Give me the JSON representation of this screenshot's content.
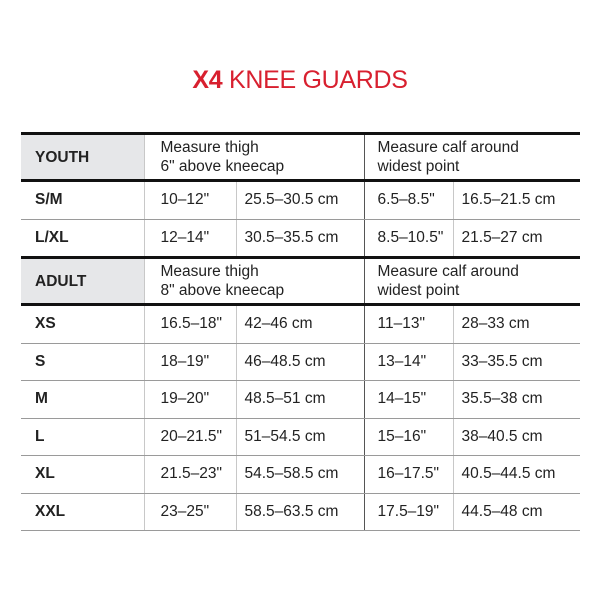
{
  "title": {
    "bold": "X4",
    "rest": " KNEE GUARDS"
  },
  "colors": {
    "accent": "#d8202f",
    "header_bg": "#e6e7e9"
  },
  "sections": [
    {
      "label": "YOUTH",
      "thigh_header": [
        "Measure thigh",
        "6\" above kneecap"
      ],
      "calf_header": [
        "Measure calf around",
        "widest point"
      ],
      "rows": [
        {
          "size": "S/M",
          "thigh_in": "10–12\"",
          "thigh_cm": "25.5–30.5 cm",
          "calf_in": "6.5–8.5\"",
          "calf_cm": "16.5–21.5 cm"
        },
        {
          "size": "L/XL",
          "thigh_in": "12–14\"",
          "thigh_cm": "30.5–35.5 cm",
          "calf_in": "8.5–10.5\"",
          "calf_cm": "21.5–27 cm"
        }
      ]
    },
    {
      "label": "ADULT",
      "thigh_header": [
        "Measure thigh",
        "8\" above kneecap"
      ],
      "calf_header": [
        "Measure calf around",
        "widest point"
      ],
      "rows": [
        {
          "size": "XS",
          "thigh_in": "16.5–18\"",
          "thigh_cm": "42–46 cm",
          "calf_in": "11–13\"",
          "calf_cm": "28–33 cm"
        },
        {
          "size": "S",
          "thigh_in": "18–19\"",
          "thigh_cm": "46–48.5 cm",
          "calf_in": "13–14\"",
          "calf_cm": "33–35.5 cm"
        },
        {
          "size": "M",
          "thigh_in": "19–20\"",
          "thigh_cm": "48.5–51 cm",
          "calf_in": "14–15\"",
          "calf_cm": "35.5–38 cm"
        },
        {
          "size": "L",
          "thigh_in": "20–21.5\"",
          "thigh_cm": "51–54.5 cm",
          "calf_in": "15–16\"",
          "calf_cm": "38–40.5 cm"
        },
        {
          "size": "XL",
          "thigh_in": "21.5–23\"",
          "thigh_cm": "54.5–58.5 cm",
          "calf_in": "16–17.5\"",
          "calf_cm": "40.5–44.5 cm"
        },
        {
          "size": "XXL",
          "thigh_in": "23–25\"",
          "thigh_cm": "58.5–63.5 cm",
          "calf_in": "17.5–19\"",
          "calf_cm": "44.5–48 cm"
        }
      ]
    }
  ]
}
